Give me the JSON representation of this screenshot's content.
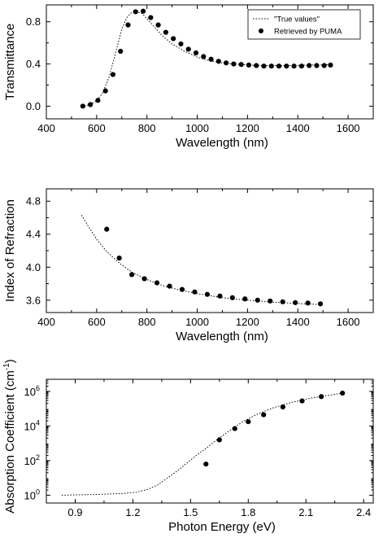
{
  "chart_data": [
    {
      "type": "scatter",
      "xlabel": "Wavelength (nm)",
      "ylabel": "Transmittance",
      "xlim": [
        400,
        1700
      ],
      "ylim": [
        -0.12,
        0.96
      ],
      "xticks": [
        400,
        600,
        800,
        1000,
        1200,
        1400,
        1600
      ],
      "xtick_labels": [
        "400",
        "600",
        "800",
        "1000",
        "1200",
        "1400",
        "1600"
      ],
      "yticks": [
        0.0,
        0.4,
        0.8
      ],
      "ytick_labels": [
        "0.0",
        "0.4",
        "0.8"
      ],
      "legend": {
        "placement": "top-right",
        "entries": [
          {
            "label": "\"True values\"",
            "style": "dotted-line"
          },
          {
            "label": "Retrieved by PUMA",
            "style": "filled-circle"
          }
        ]
      },
      "series": [
        {
          "name": "\"True values\"",
          "style": "dotted-line",
          "x": [
            540,
            570,
            600,
            625,
            650,
            675,
            700,
            720,
            740,
            760,
            780,
            800,
            830,
            860,
            900,
            950,
            1000,
            1050,
            1100,
            1150,
            1200,
            1250,
            1300,
            1350,
            1400,
            1450,
            1500,
            1530
          ],
          "y": [
            0.0,
            0.01,
            0.05,
            0.13,
            0.28,
            0.5,
            0.73,
            0.84,
            0.89,
            0.895,
            0.88,
            0.83,
            0.75,
            0.67,
            0.59,
            0.52,
            0.465,
            0.43,
            0.41,
            0.4,
            0.39,
            0.385,
            0.385,
            0.385,
            0.385,
            0.39,
            0.39,
            0.395
          ]
        },
        {
          "name": "Retrieved by PUMA",
          "style": "filled-circle",
          "x": [
            545,
            575,
            605,
            635,
            665,
            695,
            725,
            755,
            785,
            815,
            845,
            875,
            905,
            935,
            965,
            995,
            1025,
            1055,
            1085,
            1115,
            1145,
            1175,
            1205,
            1235,
            1265,
            1295,
            1325,
            1355,
            1385,
            1415,
            1445,
            1475,
            1505,
            1530
          ],
          "y": [
            0.0,
            0.015,
            0.055,
            0.145,
            0.3,
            0.52,
            0.77,
            0.895,
            0.9,
            0.84,
            0.77,
            0.7,
            0.64,
            0.59,
            0.54,
            0.505,
            0.47,
            0.445,
            0.425,
            0.41,
            0.4,
            0.395,
            0.39,
            0.385,
            0.38,
            0.38,
            0.38,
            0.38,
            0.38,
            0.38,
            0.385,
            0.385,
            0.385,
            0.39
          ]
        }
      ]
    },
    {
      "type": "scatter",
      "xlabel": "Wavelength (nm)",
      "ylabel": "Index of Refraction",
      "xlim": [
        400,
        1700
      ],
      "ylim": [
        3.45,
        4.95
      ],
      "xticks": [
        400,
        600,
        800,
        1000,
        1200,
        1400,
        1600
      ],
      "xtick_labels": [
        "400",
        "600",
        "800",
        "1000",
        "1200",
        "1400",
        "1600"
      ],
      "yticks": [
        3.6,
        4.0,
        4.4,
        4.8
      ],
      "ytick_labels": [
        "3.6",
        "4.0",
        "4.4",
        "4.8"
      ],
      "series": [
        {
          "name": "\"True values\"",
          "style": "dotted-line",
          "x": [
            540,
            570,
            600,
            640,
            690,
            740,
            800,
            860,
            920,
            1000,
            1100,
            1200,
            1300,
            1400,
            1500
          ],
          "y": [
            4.63,
            4.48,
            4.34,
            4.19,
            4.05,
            3.94,
            3.85,
            3.78,
            3.73,
            3.68,
            3.63,
            3.6,
            3.575,
            3.56,
            3.545
          ]
        },
        {
          "name": "Retrieved by PUMA",
          "style": "filled-circle",
          "x": [
            640,
            690,
            740,
            790,
            840,
            890,
            940,
            990,
            1040,
            1090,
            1140,
            1190,
            1240,
            1290,
            1340,
            1390,
            1440,
            1490
          ],
          "y": [
            4.46,
            4.11,
            3.91,
            3.86,
            3.81,
            3.77,
            3.73,
            3.7,
            3.67,
            3.65,
            3.63,
            3.615,
            3.6,
            3.59,
            3.58,
            3.57,
            3.565,
            3.555
          ]
        }
      ]
    },
    {
      "type": "scatter",
      "xlabel": "Photon Energy (eV)",
      "ylabel_main": "Absorption Coefficient (cm",
      "ylabel_exp": "-1",
      "ylabel_close": ")",
      "yscale": "log",
      "xlim": [
        0.75,
        2.45
      ],
      "ylim_log10": [
        -0.45,
        6.7
      ],
      "xticks": [
        0.9,
        1.2,
        1.5,
        1.8,
        2.1,
        2.4
      ],
      "xtick_labels": [
        "0.9",
        "1.2",
        "1.5",
        "1.8",
        "2.1",
        "2.4"
      ],
      "yticks_log10": [
        0,
        2,
        4,
        6
      ],
      "ytick_base": "10",
      "ytick_exps": [
        "0",
        "2",
        "4",
        "6"
      ],
      "series": [
        {
          "name": "\"True values\"",
          "style": "dotted-line",
          "x": [
            0.83,
            0.95,
            1.05,
            1.15,
            1.22,
            1.28,
            1.33,
            1.38,
            1.43,
            1.48,
            1.53,
            1.58,
            1.63,
            1.68,
            1.73,
            1.78,
            1.85,
            1.93,
            2.02,
            2.12,
            2.22,
            2.29
          ],
          "log10_y": [
            0.0,
            0.03,
            0.06,
            0.1,
            0.18,
            0.35,
            0.6,
            1.0,
            1.4,
            1.85,
            2.3,
            2.7,
            3.15,
            3.55,
            3.95,
            4.3,
            4.7,
            5.05,
            5.35,
            5.6,
            5.78,
            5.9
          ]
        },
        {
          "name": "Retrieved by PUMA",
          "style": "filled-circle",
          "x": [
            1.58,
            1.65,
            1.73,
            1.8,
            1.88,
            1.98,
            2.08,
            2.18,
            2.29
          ],
          "log10_y": [
            1.8,
            3.2,
            3.85,
            4.25,
            4.65,
            5.1,
            5.45,
            5.7,
            5.9
          ]
        }
      ]
    }
  ]
}
